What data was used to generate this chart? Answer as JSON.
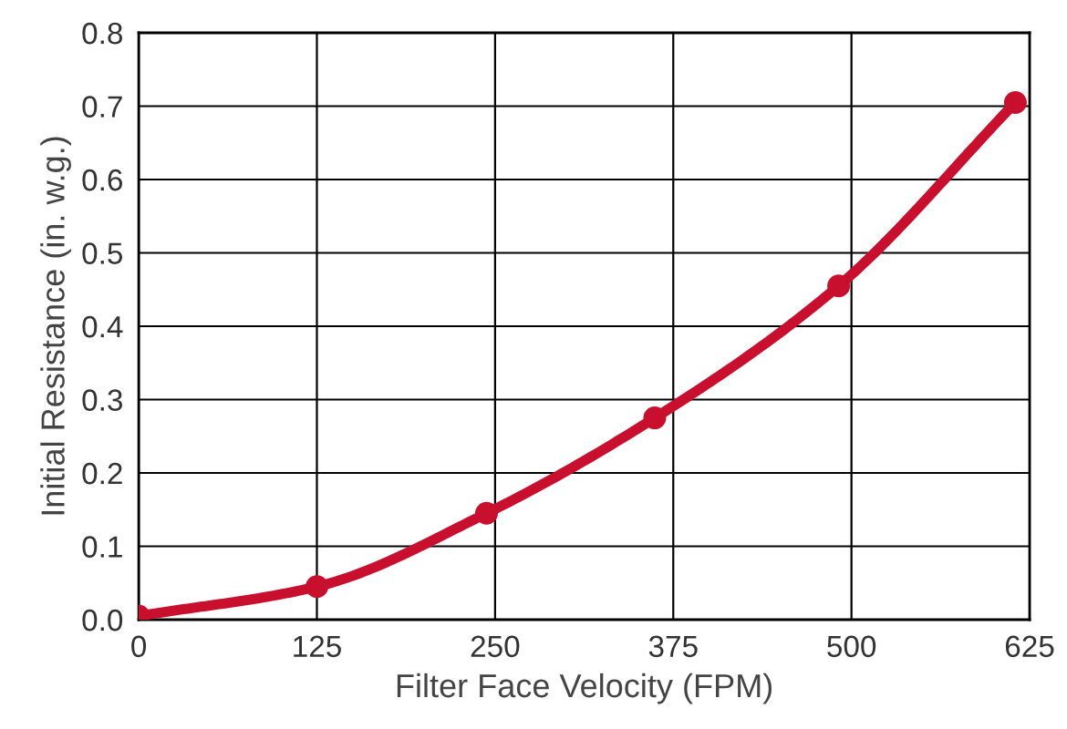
{
  "chart_data": {
    "type": "line",
    "xlabel": "Filter Face Velocity (FPM)",
    "ylabel": "Initial Resistance (in. w.g.)",
    "x": [
      0,
      125,
      244,
      362,
      491,
      615
    ],
    "series": [
      {
        "color": "#c8102e",
        "values": [
          0.005,
          0.045,
          0.145,
          0.275,
          0.455,
          0.705
        ]
      }
    ],
    "marker": "circle",
    "line_style": "solid",
    "grid": true,
    "xlim": [
      0,
      625
    ],
    "xticks": [
      0,
      125,
      250,
      375,
      500,
      625
    ],
    "ylim": [
      0,
      0.8
    ],
    "yticks": [
      {
        "value": 0,
        "label": "0.0"
      },
      {
        "value": 0.1,
        "label": "0.1"
      },
      {
        "value": 0.2,
        "label": "0.2"
      },
      {
        "value": 0.3,
        "label": "0.3"
      },
      {
        "value": 0.4,
        "label": "0.4"
      },
      {
        "value": 0.5,
        "label": "0.5"
      },
      {
        "value": 0.6,
        "label": "0.6"
      },
      {
        "value": 0.7,
        "label": "0.7"
      },
      {
        "value": 0.8,
        "label": "0.8"
      }
    ]
  }
}
